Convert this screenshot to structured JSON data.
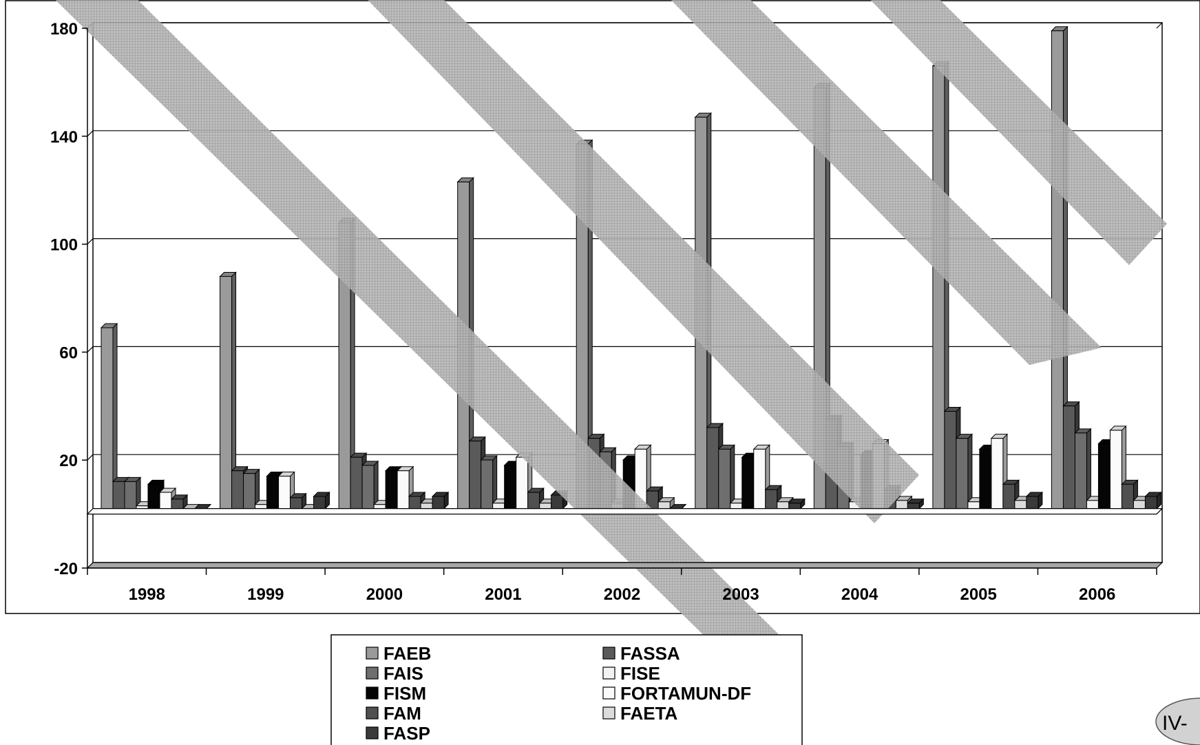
{
  "page_marker": "IV-",
  "chart_data": {
    "type": "bar",
    "title": "",
    "xlabel": "",
    "ylabel": "",
    "ylim": [
      -20,
      180
    ],
    "yticks": [
      -20,
      20,
      60,
      100,
      140,
      180
    ],
    "grid": true,
    "legend_position": "bottom",
    "categories": [
      "1998",
      "1999",
      "2000",
      "2001",
      "2002",
      "2003",
      "2004",
      "2005",
      "2006"
    ],
    "series": [
      {
        "name": "FAEB",
        "color": "#9a9a9a",
        "values": [
          67,
          86,
          106,
          121,
          135,
          145,
          156,
          164,
          177
        ]
      },
      {
        "name": "FASSA",
        "color": "#5a5a5a",
        "values": [
          10,
          14,
          19,
          25,
          26,
          30,
          33,
          36,
          38
        ]
      },
      {
        "name": "FAIS",
        "color": "#6e6e6e",
        "values": [
          10,
          13,
          16,
          18,
          21,
          22,
          23,
          26,
          28
        ]
      },
      {
        "name": "FISE",
        "color": "#f2f2f2",
        "values": [
          1,
          1.5,
          1.5,
          2,
          2,
          2,
          2.5,
          2.5,
          3
        ]
      },
      {
        "name": "FISM",
        "color": "#050505",
        "values": [
          9,
          12,
          14,
          16,
          18,
          19,
          20,
          22,
          24
        ]
      },
      {
        "name": "FORTAMUN-DF",
        "color": "#fafafa",
        "values": [
          6,
          12,
          14,
          19,
          22,
          22,
          24,
          26,
          29
        ]
      },
      {
        "name": "FAM",
        "color": "#505050",
        "values": [
          3.5,
          4,
          4.5,
          6,
          6.5,
          7,
          7,
          9,
          9
        ]
      },
      {
        "name": "FAETA",
        "color": "#dcdcdc",
        "values": [
          0,
          0,
          2,
          2,
          2.5,
          2.5,
          3,
          3,
          3
        ]
      },
      {
        "name": "FASP",
        "color": "#3a3a3a",
        "values": [
          0,
          4.5,
          4.5,
          5,
          0,
          2,
          2,
          4.5,
          4.5
        ]
      }
    ]
  }
}
